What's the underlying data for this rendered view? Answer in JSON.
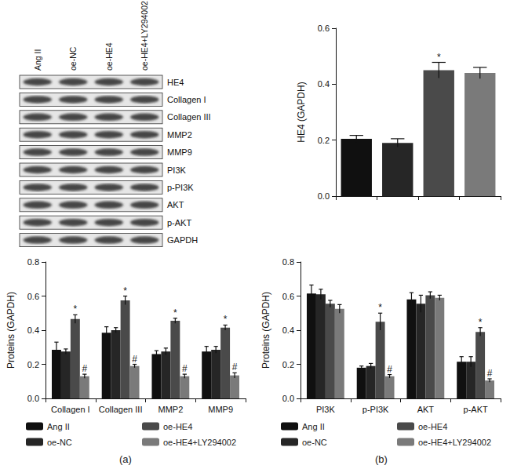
{
  "blot": {
    "lanes": [
      "Ang II",
      "oe-NC",
      "oe-HE4",
      "oe-HE4+LY294002"
    ],
    "proteins": [
      "HE4",
      "Collagen I",
      "Collagen III",
      "MMP2",
      "MMP9",
      "PI3K",
      "p-PI3K",
      "AKT",
      "p-AKT",
      "GAPDH"
    ]
  },
  "panels": [
    "(a)",
    "(b)"
  ],
  "chart_data": [
    {
      "type": "bar",
      "ylabel": "HE4 (GAPDH)",
      "categories": [
        null,
        null,
        null,
        null
      ],
      "values": [
        0.205,
        0.19,
        0.45,
        0.44
      ],
      "errors": [
        0.012,
        0.015,
        0.028,
        0.02
      ],
      "annotations": [
        null,
        null,
        "*",
        null
      ],
      "colors": [
        "#101010",
        "#262626",
        "#4a4a4a",
        "#7a7a7a"
      ],
      "ylim": [
        0,
        0.6
      ],
      "yticks": [
        {
          "value": 0,
          "label": "0.0"
        },
        0.2,
        0.4,
        0.6
      ],
      "grid": false,
      "tick_labels": "y"
    },
    {
      "type": "bar",
      "ylabel": "Proteins (GAPDH)",
      "categories": [
        "Collagen I",
        "Collagen III",
        "MMP2",
        "MMP9"
      ],
      "series": [
        {
          "name": "Ang II",
          "color": "#101010",
          "values": [
            0.285,
            0.385,
            0.26,
            0.275
          ],
          "errors": [
            0.045,
            0.035,
            0.02,
            0.03
          ],
          "annotations": [
            null,
            null,
            null,
            null
          ]
        },
        {
          "name": "oe-NC",
          "color": "#262626",
          "values": [
            0.275,
            0.4,
            0.275,
            0.285
          ],
          "errors": [
            0.015,
            0.015,
            0.02,
            0.02
          ],
          "annotations": [
            null,
            null,
            null,
            null
          ]
        },
        {
          "name": "oe-HE4",
          "color": "#4a4a4a",
          "values": [
            0.465,
            0.575,
            0.455,
            0.415
          ],
          "errors": [
            0.025,
            0.025,
            0.015,
            0.015
          ],
          "annotations": [
            "*",
            "*",
            "*",
            "*"
          ]
        },
        {
          "name": "oe-HE4+LY294002",
          "color": "#7a7a7a",
          "values": [
            0.13,
            0.19,
            0.13,
            0.135
          ],
          "errors": [
            0.012,
            0.01,
            0.012,
            0.015
          ],
          "annotations": [
            "#",
            "#",
            "#",
            "#"
          ]
        }
      ],
      "ylim": [
        0,
        0.8
      ],
      "yticks": [
        {
          "value": 0,
          "label": "0.0"
        },
        0.2,
        0.4,
        0.6,
        0.8
      ],
      "grid": false,
      "legend": "bottom"
    },
    {
      "type": "bar",
      "ylabel": "Proteins (GAPDH)",
      "categories": [
        "PI3K",
        "p-PI3K",
        "AKT",
        "p-AKT"
      ],
      "series": [
        {
          "name": "Ang II",
          "color": "#101010",
          "values": [
            0.615,
            0.18,
            0.58,
            0.215
          ],
          "errors": [
            0.05,
            0.01,
            0.04,
            0.03
          ],
          "annotations": [
            null,
            null,
            null,
            null
          ]
        },
        {
          "name": "oe-NC",
          "color": "#262626",
          "values": [
            0.61,
            0.19,
            0.555,
            0.215
          ],
          "errors": [
            0.03,
            0.015,
            0.05,
            0.03
          ],
          "annotations": [
            null,
            null,
            null,
            null
          ]
        },
        {
          "name": "oe-HE4",
          "color": "#4a4a4a",
          "values": [
            0.555,
            0.45,
            0.605,
            0.39
          ],
          "errors": [
            0.02,
            0.05,
            0.02,
            0.025
          ],
          "annotations": [
            null,
            "*",
            null,
            "*"
          ]
        },
        {
          "name": "oe-HE4+LY294002",
          "color": "#7a7a7a",
          "values": [
            0.525,
            0.13,
            0.59,
            0.105
          ],
          "errors": [
            0.025,
            0.01,
            0.015,
            0.01
          ],
          "annotations": [
            null,
            "#",
            null,
            "#"
          ]
        }
      ],
      "ylim": [
        0,
        0.8
      ],
      "yticks": [
        {
          "value": 0,
          "label": "0.0"
        },
        0.2,
        0.4,
        0.6,
        0.8
      ],
      "grid": false,
      "legend": "bottom"
    }
  ]
}
